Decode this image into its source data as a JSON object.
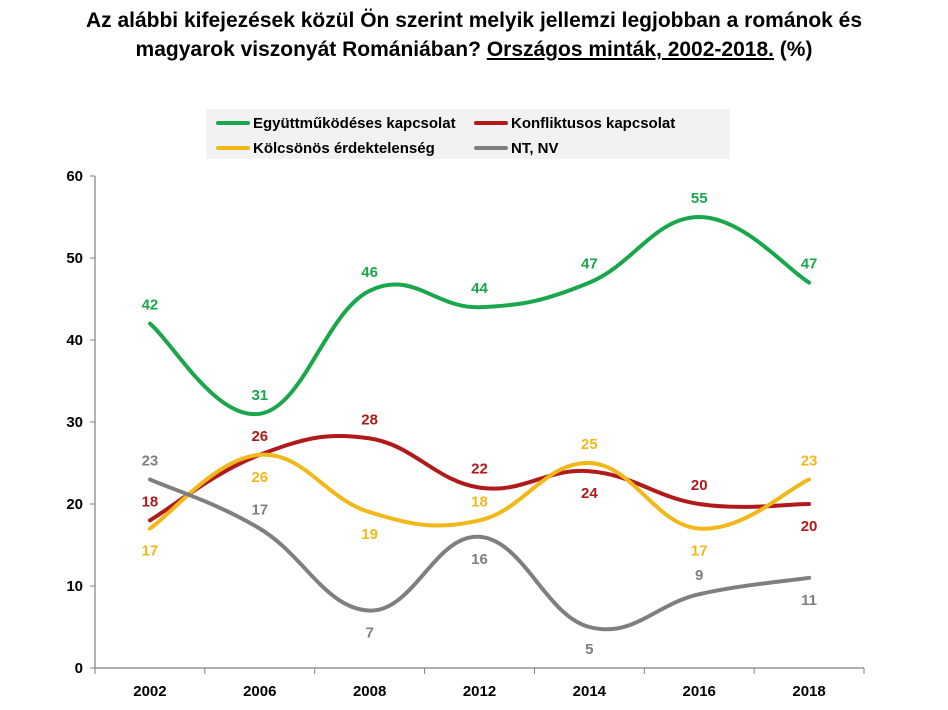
{
  "title": {
    "line1": "Az alábbi kifejezések közül Ön szerint melyik jellemzi legjobban a románok és",
    "line2_pre": "magyarok viszonyát Romániában? ",
    "line2_underlined": "Országos minták, 2002-2018.",
    "line2_post": " (%)"
  },
  "chart_data": {
    "type": "line",
    "categories": [
      "2002",
      "2006",
      "2008",
      "2012",
      "2014",
      "2016",
      "2018"
    ],
    "ylim": [
      0,
      60
    ],
    "yticks": [
      0,
      10,
      20,
      30,
      40,
      50,
      60
    ],
    "grid": false,
    "smooth": true,
    "legend_position": "top",
    "series": [
      {
        "name": "Együttműködéses kapcsolat",
        "color": "#1aa64a",
        "values": [
          42,
          31,
          46,
          44,
          47,
          55,
          47
        ],
        "labels": [
          "42",
          "31",
          "46",
          "44",
          "47",
          "55",
          "47"
        ]
      },
      {
        "name": "Konfliktusos kapcsolat",
        "color": "#b01a1a",
        "values": [
          18,
          26,
          28,
          22,
          24,
          20,
          20
        ],
        "labels": [
          "18",
          "26",
          "28",
          "22",
          "24",
          "20",
          "20"
        ]
      },
      {
        "name": "Kölcsönös érdektelenség",
        "color": "#f2b81a",
        "values": [
          17,
          26,
          19,
          18,
          25,
          17,
          23
        ],
        "labels": [
          "17",
          "26",
          "19",
          "18",
          "25",
          "17",
          "23"
        ]
      },
      {
        "name": "NT, NV",
        "color": "#7f7f7f",
        "values": [
          23,
          17,
          7,
          16,
          5,
          9,
          11
        ],
        "labels": [
          "23",
          "17",
          "7",
          "16",
          "5",
          "9",
          "11"
        ]
      }
    ]
  }
}
